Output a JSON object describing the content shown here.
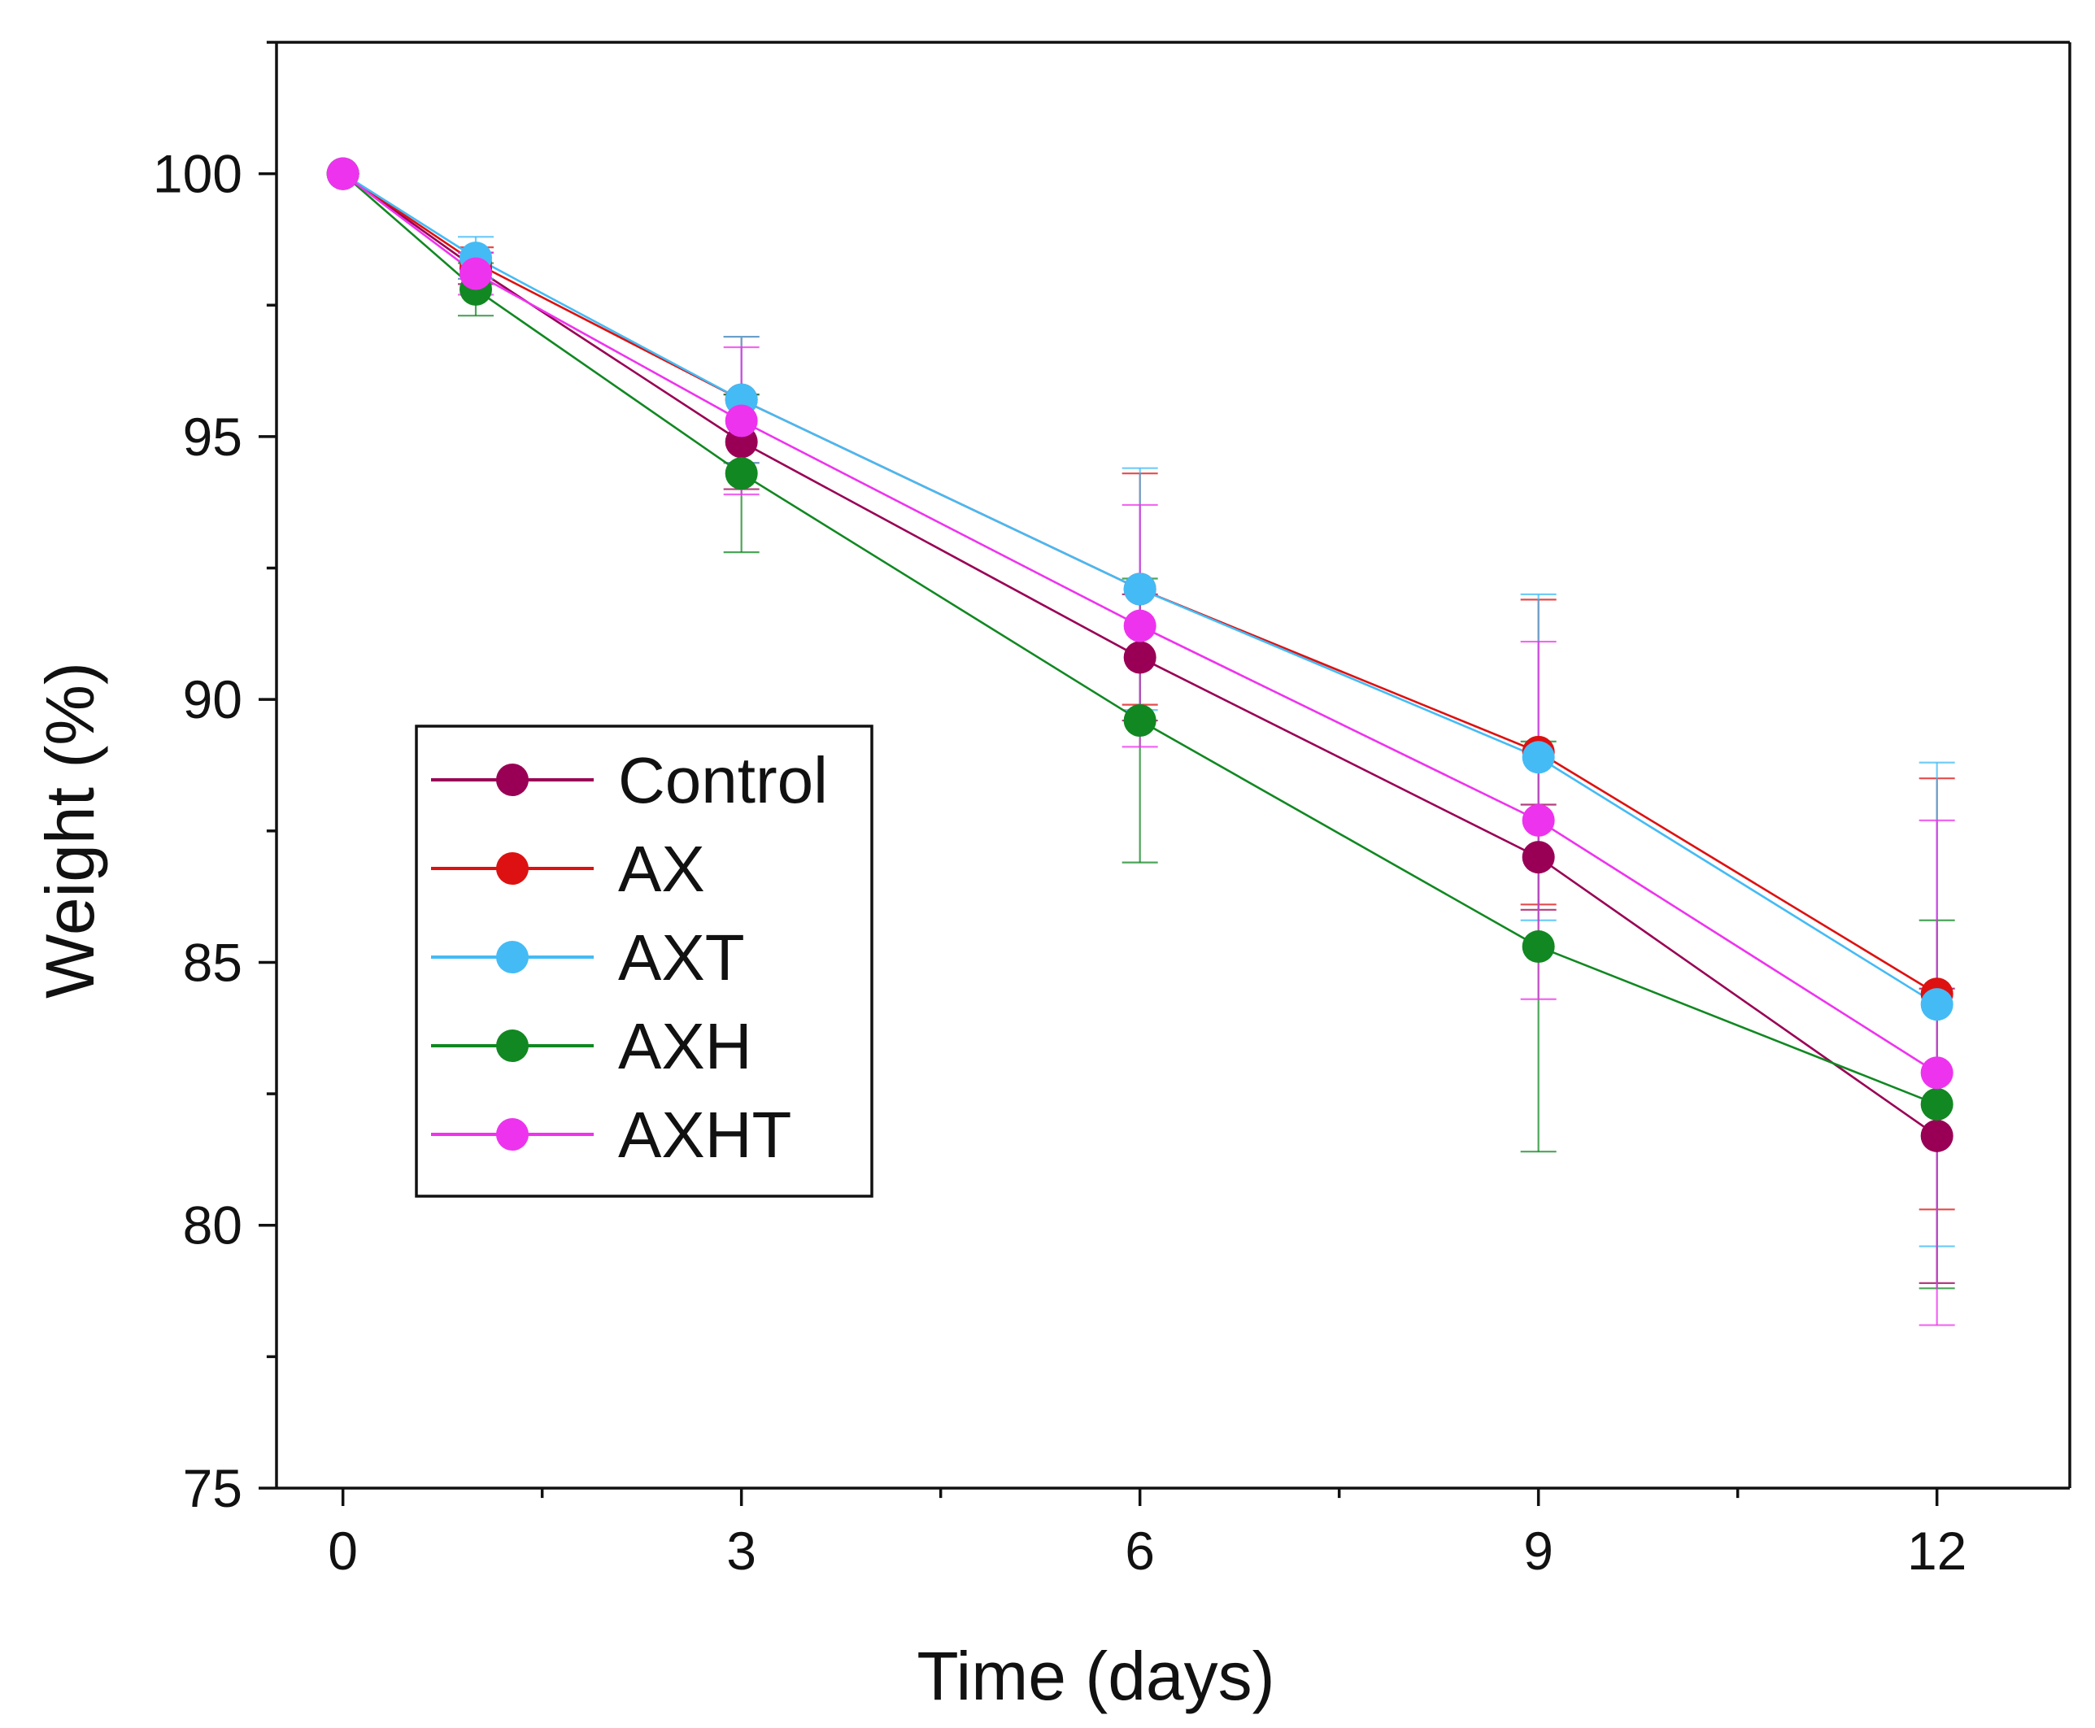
{
  "chart_data": {
    "type": "line",
    "xlabel": "Time (days)",
    "ylabel": "Weight (%)",
    "xlim": [
      -0.5,
      13
    ],
    "ylim": [
      75,
      102.5
    ],
    "xticks": [
      0,
      3,
      6,
      9,
      12
    ],
    "xticks_minor": [
      1.5,
      4.5,
      7.5,
      10.5
    ],
    "yticks": [
      75,
      80,
      85,
      90,
      95,
      100
    ],
    "yticks_minor": [
      77.5,
      82.5,
      87.5,
      92.5,
      97.5,
      102.5
    ],
    "grid": false,
    "legend_position": "center-left",
    "x": [
      0,
      1,
      3,
      6,
      9,
      12
    ],
    "series": [
      {
        "name": "Control",
        "color": "#990055",
        "values": [
          100,
          98.2,
          94.9,
          90.8,
          87.0,
          81.7
        ],
        "errors": [
          0,
          0.3,
          0.9,
          1.2,
          1.0,
          2.8
        ]
      },
      {
        "name": "AX",
        "color": "#dd1111",
        "values": [
          100,
          98.3,
          95.7,
          92.1,
          89.0,
          84.4
        ],
        "errors": [
          0,
          0.3,
          1.2,
          2.2,
          2.9,
          4.1
        ]
      },
      {
        "name": "AXT",
        "color": "#44bbf5",
        "values": [
          100,
          98.4,
          95.7,
          92.1,
          88.9,
          84.2
        ],
        "errors": [
          0,
          0.4,
          1.2,
          2.3,
          3.1,
          4.6
        ]
      },
      {
        "name": "AXH",
        "color": "#118822",
        "values": [
          100,
          97.8,
          94.3,
          89.6,
          85.3,
          82.3
        ],
        "errors": [
          0,
          0.5,
          1.5,
          2.7,
          3.9,
          3.5
        ]
      },
      {
        "name": "AXHT",
        "color": "#ee33ee",
        "values": [
          100,
          98.1,
          95.3,
          91.4,
          87.7,
          82.9
        ],
        "errors": [
          0,
          0.4,
          1.4,
          2.3,
          3.4,
          4.8
        ]
      }
    ]
  }
}
